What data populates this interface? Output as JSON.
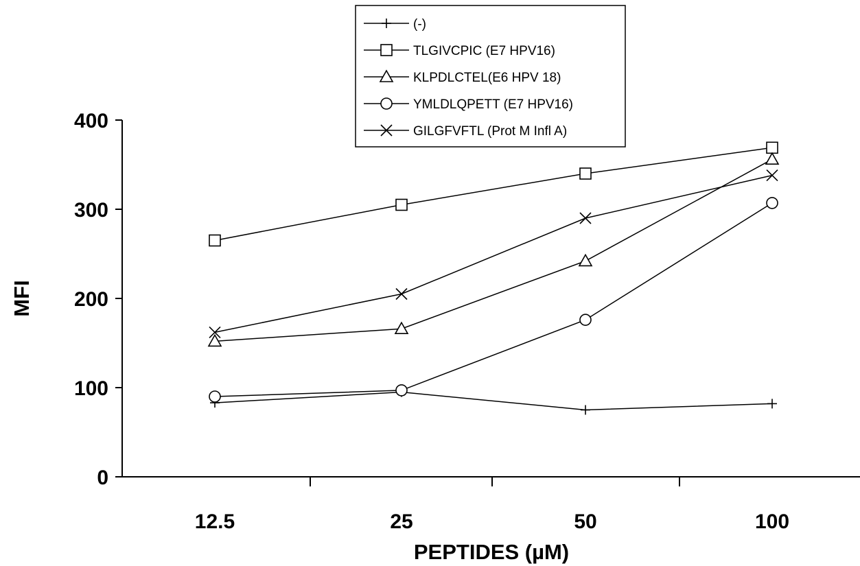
{
  "chart_data": {
    "type": "line",
    "title": "",
    "xlabel": "PEPTIDES (µM)",
    "ylabel": "MFI",
    "categories": [
      "12.5",
      "25",
      "50",
      "100"
    ],
    "ylim": [
      0,
      400
    ],
    "yticks": [
      "0",
      "100",
      "200",
      "300",
      "400"
    ],
    "grid": false,
    "legend_position": "top-center",
    "series": [
      {
        "name": "(-)",
        "marker": "plus",
        "values": [
          83,
          95,
          75,
          82
        ]
      },
      {
        "name": "TLGIVCPIC (E7 HPV16)",
        "marker": "square",
        "values": [
          265,
          305,
          340,
          369
        ]
      },
      {
        "name": "KLPDLCTEL(E6 HPV 18)",
        "marker": "triangle",
        "values": [
          152,
          166,
          242,
          356
        ]
      },
      {
        "name": "YMLDLQPETT (E7 HPV16)",
        "marker": "circle",
        "values": [
          90,
          97,
          176,
          307
        ]
      },
      {
        "name": "GILGFVFTL (Prot M Infl A)",
        "marker": "x",
        "values": [
          162,
          205,
          290,
          338
        ]
      }
    ]
  }
}
